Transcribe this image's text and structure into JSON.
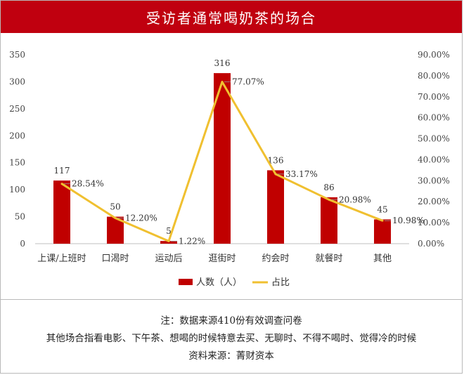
{
  "title": "受访者通常喝奶茶的场合",
  "chart_data": {
    "type": "bar",
    "categories": [
      "上课/上班时",
      "口渴时",
      "运动后",
      "逛街时",
      "约会时",
      "就餐时",
      "其他"
    ],
    "series": [
      {
        "name": "人数（人）",
        "type": "bar",
        "axis": "left",
        "color": "#c00000",
        "values": [
          117,
          50,
          5,
          316,
          136,
          86,
          45
        ],
        "labels": [
          "117",
          "50",
          "5",
          "316",
          "136",
          "86",
          "45"
        ]
      },
      {
        "name": "占比",
        "type": "line",
        "axis": "right",
        "color": "#f0c030",
        "values": [
          28.54,
          12.2,
          1.22,
          77.07,
          33.17,
          20.98,
          10.98
        ],
        "labels": [
          "28.54%",
          "12.20%",
          "1.22%",
          "77.07%",
          "33.17%",
          "20.98%",
          "10.98%"
        ]
      }
    ],
    "y_left": {
      "min": 0,
      "max": 350,
      "ticks": [
        "0",
        "50",
        "100",
        "150",
        "200",
        "250",
        "300",
        "350"
      ]
    },
    "y_right": {
      "min": 0,
      "max": 90,
      "ticks": [
        "0.00%",
        "10.00%",
        "20.00%",
        "30.00%",
        "40.00%",
        "50.00%",
        "60.00%",
        "70.00%",
        "80.00%",
        "90.00%"
      ]
    },
    "grid": false,
    "legend": "bottom-center"
  },
  "notes": {
    "line1": "注：数据来源410份有效调查问卷",
    "line2": "其他场合指看电影、下午茶、想喝的时候特意去买、无聊时、不得不喝时、觉得冷的时候",
    "line3": "资料来源：菁财资本"
  }
}
